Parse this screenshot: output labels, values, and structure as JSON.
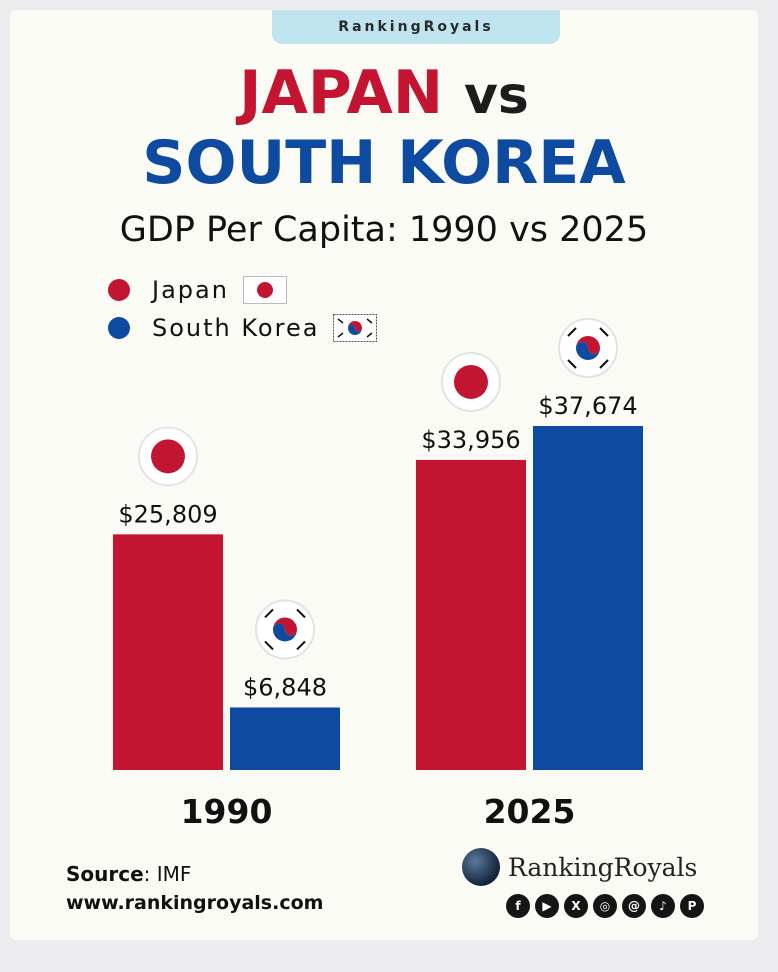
{
  "brand_tab": "RankingRoyals",
  "title": {
    "part1": "JAPAN",
    "part2": "vs",
    "part3": "SOUTH KOREA"
  },
  "colors": {
    "japan": "#c31432",
    "south_korea": "#0f4aa1"
  },
  "chart_data": {
    "type": "bar",
    "title": "GDP Per Capita: 1990 vs 2025",
    "categories": [
      "1990",
      "2025"
    ],
    "series": [
      {
        "name": "Japan",
        "values": [
          25809,
          33956
        ],
        "labels": [
          "$25,809",
          "$33,956"
        ]
      },
      {
        "name": "South Korea",
        "values": [
          6848,
          37674
        ],
        "labels": [
          "$6,848",
          "$37,674"
        ]
      }
    ],
    "xlabel": "",
    "ylabel": "",
    "ylim": [
      0,
      37674
    ],
    "grid": false,
    "legend": "top-left"
  },
  "source": {
    "label": "Source",
    "value": ": IMF"
  },
  "website": "www.rankingroyals.com",
  "logo_text": "RankingRoyals",
  "social_icons": [
    "facebook-icon",
    "youtube-icon",
    "x-icon",
    "instagram-icon",
    "threads-icon",
    "tiktok-icon",
    "pinterest-icon"
  ]
}
